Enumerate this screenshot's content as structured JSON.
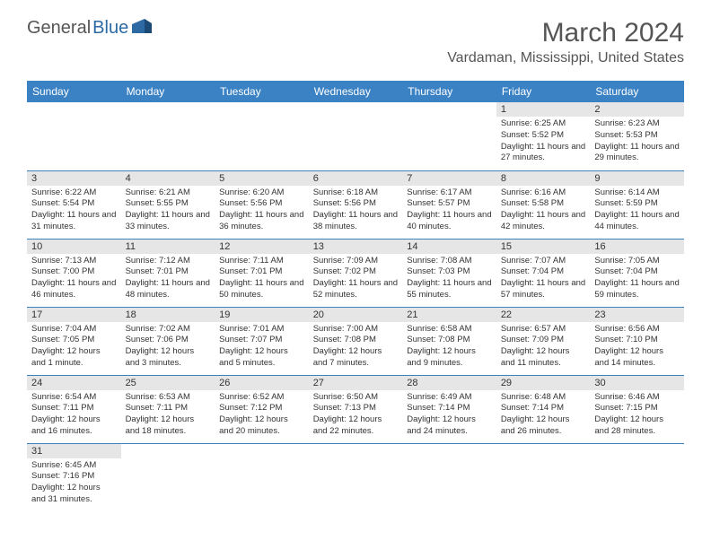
{
  "logo": {
    "word1": "General",
    "word2": "Blue"
  },
  "title": "March 2024",
  "location": "Vardaman, Mississippi, United States",
  "colors": {
    "header_bg": "#3b82c4",
    "header_text": "#ffffff",
    "daynum_bg": "#e6e6e6",
    "cell_border": "#3b82c4",
    "logo_gray": "#555555",
    "logo_blue": "#2d6aa3"
  },
  "weekdays": [
    "Sunday",
    "Monday",
    "Tuesday",
    "Wednesday",
    "Thursday",
    "Friday",
    "Saturday"
  ],
  "weeks": [
    [
      null,
      null,
      null,
      null,
      null,
      {
        "n": "1",
        "sr": "6:25 AM",
        "ss": "5:52 PM",
        "dl": "11 hours and 27 minutes."
      },
      {
        "n": "2",
        "sr": "6:23 AM",
        "ss": "5:53 PM",
        "dl": "11 hours and 29 minutes."
      }
    ],
    [
      {
        "n": "3",
        "sr": "6:22 AM",
        "ss": "5:54 PM",
        "dl": "11 hours and 31 minutes."
      },
      {
        "n": "4",
        "sr": "6:21 AM",
        "ss": "5:55 PM",
        "dl": "11 hours and 33 minutes."
      },
      {
        "n": "5",
        "sr": "6:20 AM",
        "ss": "5:56 PM",
        "dl": "11 hours and 36 minutes."
      },
      {
        "n": "6",
        "sr": "6:18 AM",
        "ss": "5:56 PM",
        "dl": "11 hours and 38 minutes."
      },
      {
        "n": "7",
        "sr": "6:17 AM",
        "ss": "5:57 PM",
        "dl": "11 hours and 40 minutes."
      },
      {
        "n": "8",
        "sr": "6:16 AM",
        "ss": "5:58 PM",
        "dl": "11 hours and 42 minutes."
      },
      {
        "n": "9",
        "sr": "6:14 AM",
        "ss": "5:59 PM",
        "dl": "11 hours and 44 minutes."
      }
    ],
    [
      {
        "n": "10",
        "sr": "7:13 AM",
        "ss": "7:00 PM",
        "dl": "11 hours and 46 minutes."
      },
      {
        "n": "11",
        "sr": "7:12 AM",
        "ss": "7:01 PM",
        "dl": "11 hours and 48 minutes."
      },
      {
        "n": "12",
        "sr": "7:11 AM",
        "ss": "7:01 PM",
        "dl": "11 hours and 50 minutes."
      },
      {
        "n": "13",
        "sr": "7:09 AM",
        "ss": "7:02 PM",
        "dl": "11 hours and 52 minutes."
      },
      {
        "n": "14",
        "sr": "7:08 AM",
        "ss": "7:03 PM",
        "dl": "11 hours and 55 minutes."
      },
      {
        "n": "15",
        "sr": "7:07 AM",
        "ss": "7:04 PM",
        "dl": "11 hours and 57 minutes."
      },
      {
        "n": "16",
        "sr": "7:05 AM",
        "ss": "7:04 PM",
        "dl": "11 hours and 59 minutes."
      }
    ],
    [
      {
        "n": "17",
        "sr": "7:04 AM",
        "ss": "7:05 PM",
        "dl": "12 hours and 1 minute."
      },
      {
        "n": "18",
        "sr": "7:02 AM",
        "ss": "7:06 PM",
        "dl": "12 hours and 3 minutes."
      },
      {
        "n": "19",
        "sr": "7:01 AM",
        "ss": "7:07 PM",
        "dl": "12 hours and 5 minutes."
      },
      {
        "n": "20",
        "sr": "7:00 AM",
        "ss": "7:08 PM",
        "dl": "12 hours and 7 minutes."
      },
      {
        "n": "21",
        "sr": "6:58 AM",
        "ss": "7:08 PM",
        "dl": "12 hours and 9 minutes."
      },
      {
        "n": "22",
        "sr": "6:57 AM",
        "ss": "7:09 PM",
        "dl": "12 hours and 11 minutes."
      },
      {
        "n": "23",
        "sr": "6:56 AM",
        "ss": "7:10 PM",
        "dl": "12 hours and 14 minutes."
      }
    ],
    [
      {
        "n": "24",
        "sr": "6:54 AM",
        "ss": "7:11 PM",
        "dl": "12 hours and 16 minutes."
      },
      {
        "n": "25",
        "sr": "6:53 AM",
        "ss": "7:11 PM",
        "dl": "12 hours and 18 minutes."
      },
      {
        "n": "26",
        "sr": "6:52 AM",
        "ss": "7:12 PM",
        "dl": "12 hours and 20 minutes."
      },
      {
        "n": "27",
        "sr": "6:50 AM",
        "ss": "7:13 PM",
        "dl": "12 hours and 22 minutes."
      },
      {
        "n": "28",
        "sr": "6:49 AM",
        "ss": "7:14 PM",
        "dl": "12 hours and 24 minutes."
      },
      {
        "n": "29",
        "sr": "6:48 AM",
        "ss": "7:14 PM",
        "dl": "12 hours and 26 minutes."
      },
      {
        "n": "30",
        "sr": "6:46 AM",
        "ss": "7:15 PM",
        "dl": "12 hours and 28 minutes."
      }
    ],
    [
      {
        "n": "31",
        "sr": "6:45 AM",
        "ss": "7:16 PM",
        "dl": "12 hours and 31 minutes."
      },
      null,
      null,
      null,
      null,
      null,
      null
    ]
  ],
  "labels": {
    "sunrise": "Sunrise:",
    "sunset": "Sunset:",
    "daylight": "Daylight:"
  }
}
